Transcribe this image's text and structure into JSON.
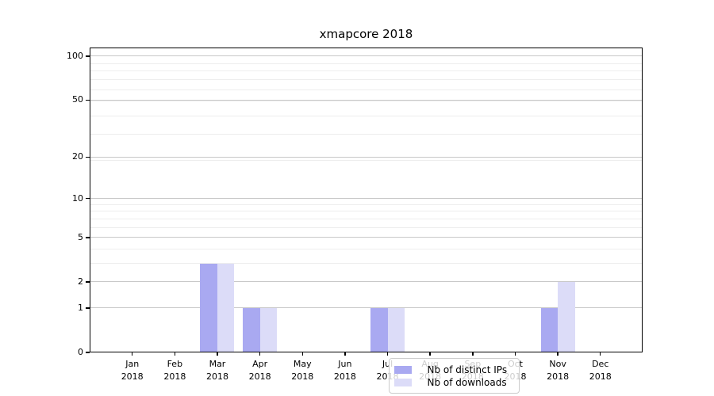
{
  "figure": {
    "title": "xmapcore 2018",
    "background": "#ffffff"
  },
  "chart_data": {
    "type": "bar",
    "title": "xmapcore 2018",
    "x_axis": {
      "months": [
        "Jan",
        "Feb",
        "Mar",
        "Apr",
        "May",
        "Jun",
        "Jul",
        "Aug",
        "Sep",
        "Oct",
        "Nov",
        "Dec"
      ],
      "year": "2018"
    },
    "y_axis": {
      "scale": "log10(1+y)",
      "tick_values": [
        0,
        1,
        2,
        5,
        10,
        20,
        50,
        100
      ],
      "tick_labels": [
        "0",
        "1",
        "2",
        "5",
        "10",
        "20",
        "50",
        "100"
      ],
      "minor_gridline_values": [
        3,
        4,
        6,
        7,
        8,
        9,
        19,
        29,
        39,
        49,
        59,
        69,
        79,
        89
      ],
      "ylim": [
        0,
        115
      ],
      "grid": "on"
    },
    "series": [
      {
        "name": "Nb of distinct IPs",
        "color": "#a9a9f1",
        "values": [
          0,
          0,
          3,
          1,
          0,
          0,
          1,
          0,
          0,
          0,
          1,
          0
        ]
      },
      {
        "name": "Nb of downloads",
        "color": "#dcdcf8",
        "values": [
          0,
          0,
          3,
          1,
          0,
          0,
          1,
          0,
          0,
          0,
          2,
          0
        ]
      }
    ],
    "legend": {
      "position": "bottom-center",
      "items": [
        {
          "label": "Nb of distinct IPs",
          "color": "#a9a9f1"
        },
        {
          "label": "Nb of downloads",
          "color": "#dcdcf8"
        }
      ]
    },
    "colors": {
      "major_grid": "#c8c8c8",
      "minor_grid": "#ededed",
      "spine": "#000000",
      "text": "#000000"
    }
  }
}
